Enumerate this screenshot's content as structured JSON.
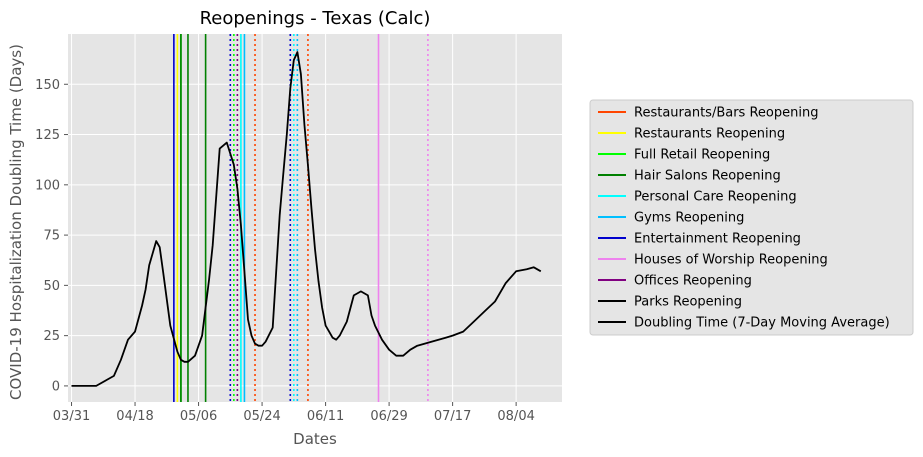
{
  "chart_data": {
    "type": "line",
    "title": "Reopenings - Texas (Calc)",
    "xlabel": "Dates",
    "ylabel": "COVID-19 Hospitalization Doubling Time (Days)",
    "x_range": [
      "2020-03-30",
      "2020-08-17"
    ],
    "ylim": [
      -8,
      175
    ],
    "x_ticks": [
      {
        "date": "2020-03-31",
        "label": "03/31"
      },
      {
        "date": "2020-04-18",
        "label": "04/18"
      },
      {
        "date": "2020-05-06",
        "label": "05/06"
      },
      {
        "date": "2020-05-24",
        "label": "05/24"
      },
      {
        "date": "2020-06-11",
        "label": "06/11"
      },
      {
        "date": "2020-06-29",
        "label": "06/29"
      },
      {
        "date": "2020-07-17",
        "label": "07/17"
      },
      {
        "date": "2020-08-04",
        "label": "08/04"
      }
    ],
    "y_ticks": [
      0,
      25,
      50,
      75,
      100,
      125,
      150
    ],
    "grid": true,
    "legend_position": "right",
    "legend": [
      {
        "label": "Restaurants/Bars Reopening",
        "color": "#ff4500"
      },
      {
        "label": "Restaurants Reopening",
        "color": "#ffff00"
      },
      {
        "label": "Full Retail Reopening",
        "color": "#00ff00"
      },
      {
        "label": "Hair Salons Reopening",
        "color": "#008000"
      },
      {
        "label": "Personal Care Reopening",
        "color": "#00ffff"
      },
      {
        "label": "Gyms Reopening",
        "color": "#00bfff"
      },
      {
        "label": "Entertainment Reopening",
        "color": "#0000cd"
      },
      {
        "label": "Houses of Worship Reopening",
        "color": "#ee82ee"
      },
      {
        "label": "Offices Reopening",
        "color": "#800080"
      },
      {
        "label": "Parks Reopening",
        "color": "#000000"
      },
      {
        "label": "Doubling Time (7-Day Moving Average)",
        "color": "#000000"
      }
    ],
    "vlines": [
      {
        "date": "2020-04-29",
        "color": "#0000cd",
        "style": "solid"
      },
      {
        "date": "2020-04-30",
        "color": "#ffff00",
        "style": "solid"
      },
      {
        "date": "2020-05-01",
        "color": "#00ff00",
        "style": "solid"
      },
      {
        "date": "2020-05-01",
        "color": "#008000",
        "style": "solid"
      },
      {
        "date": "2020-05-03",
        "color": "#008000",
        "style": "solid"
      },
      {
        "date": "2020-05-08",
        "color": "#008000",
        "style": "solid"
      },
      {
        "date": "2020-05-15",
        "color": "#0000cd",
        "style": "dotted"
      },
      {
        "date": "2020-05-16",
        "color": "#00ff00",
        "style": "dotted"
      },
      {
        "date": "2020-05-17",
        "color": "#800080",
        "style": "dotted"
      },
      {
        "date": "2020-05-18",
        "color": "#00ffff",
        "style": "solid"
      },
      {
        "date": "2020-05-19",
        "color": "#00bfff",
        "style": "solid"
      },
      {
        "date": "2020-05-22",
        "color": "#ff4500",
        "style": "dotted"
      },
      {
        "date": "2020-06-01",
        "color": "#0000cd",
        "style": "dotted"
      },
      {
        "date": "2020-06-02",
        "color": "#00ffff",
        "style": "dotted"
      },
      {
        "date": "2020-06-03",
        "color": "#00bfff",
        "style": "dotted"
      },
      {
        "date": "2020-06-06",
        "color": "#ff4500",
        "style": "dotted"
      },
      {
        "date": "2020-06-26",
        "color": "#ee82ee",
        "style": "solid"
      },
      {
        "date": "2020-07-10",
        "color": "#ee82ee",
        "style": "dotted"
      }
    ],
    "series": [
      {
        "name": "Doubling Time (7-Day Moving Average)",
        "color": "#000000",
        "x": [
          "2020-03-31",
          "2020-04-04",
          "2020-04-07",
          "2020-04-10",
          "2020-04-12",
          "2020-04-14",
          "2020-04-16",
          "2020-04-18",
          "2020-04-20",
          "2020-04-21",
          "2020-04-22",
          "2020-04-24",
          "2020-04-25",
          "2020-04-26",
          "2020-04-28",
          "2020-04-30",
          "2020-05-01",
          "2020-05-02",
          "2020-05-03",
          "2020-05-05",
          "2020-05-07",
          "2020-05-09",
          "2020-05-10",
          "2020-05-12",
          "2020-05-14",
          "2020-05-16",
          "2020-05-17",
          "2020-05-18",
          "2020-05-19",
          "2020-05-20",
          "2020-05-21",
          "2020-05-22",
          "2020-05-23",
          "2020-05-24",
          "2020-05-25",
          "2020-05-27",
          "2020-05-29",
          "2020-05-30",
          "2020-05-31",
          "2020-06-01",
          "2020-06-02",
          "2020-06-03",
          "2020-06-04",
          "2020-06-05",
          "2020-06-06",
          "2020-06-07",
          "2020-06-08",
          "2020-06-09",
          "2020-06-10",
          "2020-06-11",
          "2020-06-12",
          "2020-06-13",
          "2020-06-14",
          "2020-06-15",
          "2020-06-17",
          "2020-06-19",
          "2020-06-21",
          "2020-06-23",
          "2020-06-24",
          "2020-06-25",
          "2020-06-27",
          "2020-06-29",
          "2020-07-01",
          "2020-07-03",
          "2020-07-05",
          "2020-07-07",
          "2020-07-09",
          "2020-07-11",
          "2020-07-13",
          "2020-07-15",
          "2020-07-17",
          "2020-07-20",
          "2020-07-23",
          "2020-07-26",
          "2020-07-29",
          "2020-08-01",
          "2020-08-04",
          "2020-08-07",
          "2020-08-09",
          "2020-08-10",
          "2020-08-11"
        ],
        "y": [
          0,
          0,
          0,
          3,
          5,
          13,
          23,
          27,
          40,
          48,
          60,
          72,
          69,
          56,
          30,
          17,
          13,
          12,
          12,
          15,
          25,
          53,
          70,
          118,
          121,
          110,
          98,
          80,
          57,
          33,
          25,
          21,
          20,
          20,
          22,
          29,
          85,
          105,
          125,
          148,
          162,
          166,
          155,
          130,
          110,
          88,
          68,
          52,
          39,
          30,
          27,
          24,
          23,
          25,
          32,
          45,
          47,
          45,
          35,
          30,
          23,
          18,
          15,
          15,
          18,
          20,
          21,
          22,
          23,
          24,
          25,
          27,
          32,
          37,
          42,
          51,
          57,
          58,
          59,
          58,
          57
        ]
      }
    ]
  }
}
